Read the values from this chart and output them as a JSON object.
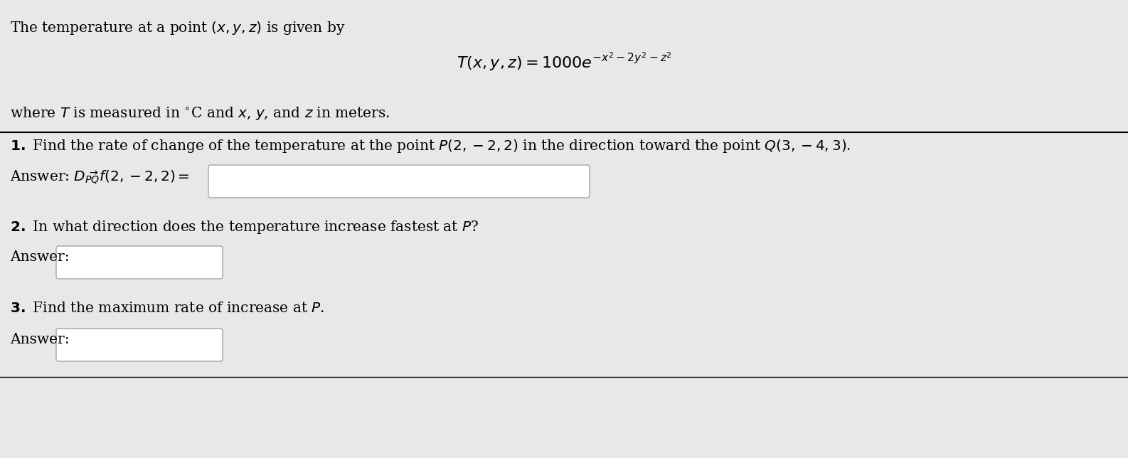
{
  "bg_color": "#e8e8e8",
  "fig_width": 15.86,
  "fig_height": 6.44,
  "intro_line1": "The temperature at a point $(x, y, z)$ is given by",
  "formula": "$T(x, y, z) = 1000e^{-x^2-2y^2-z^2}$",
  "intro_line2": "where $T$ is measured in $^{\\circ}$C and $x$, $y$, and $z$ in meters.",
  "q1_text": " Find the rate of change of the temperature at the point $P(2, -2, 2)$ in the direction toward the point $Q(3, -4, 3)$.",
  "q1_answer_label": "Answer: $D_{\\overrightarrow{PQ}}f(2, -2, 2) =$",
  "q2_text": " In what direction does the temperature increase fastest at $P$?",
  "q2_answer_label": "Answer:",
  "q3_text": " Find the maximum rate of increase at $P$.",
  "q3_answer_label": "Answer:"
}
